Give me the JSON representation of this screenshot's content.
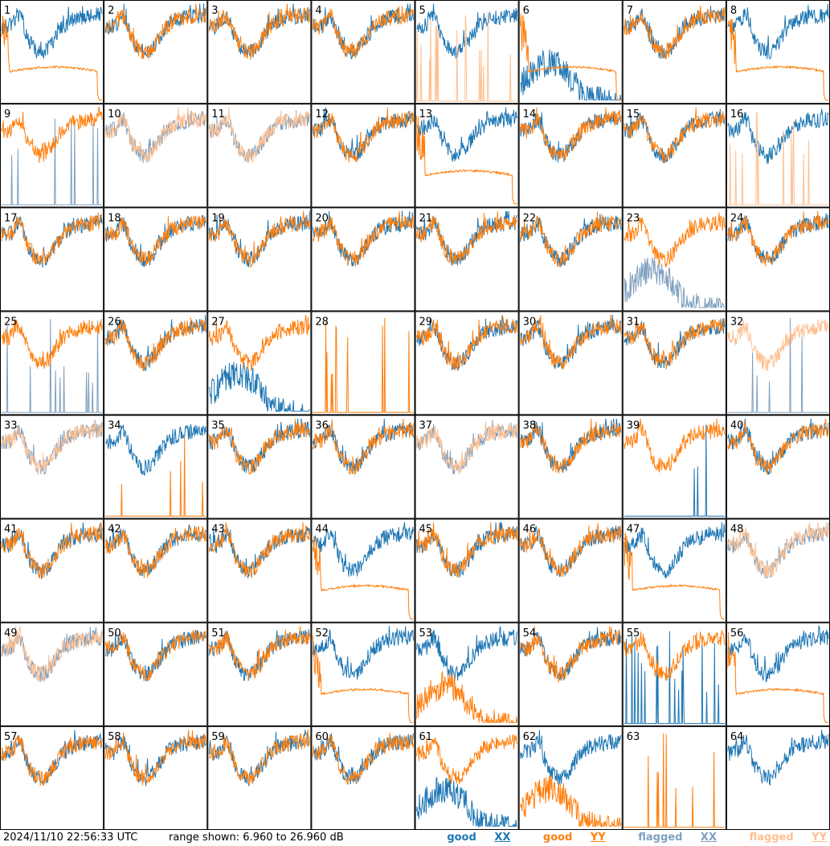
{
  "footer": {
    "timestamp": "2024/11/10 22:56:33 UTC",
    "range_label": "range shown:",
    "range_text": "6.960 to 26.960 dB"
  },
  "legend": {
    "good_xx": {
      "prefix": "good ",
      "pol": "XX",
      "color": "#1f77b4"
    },
    "good_yy": {
      "prefix": "good ",
      "pol": "YY",
      "color": "#ff7f0e"
    },
    "flagged_xx": {
      "prefix": "flagged ",
      "pol": "XX",
      "color": "#7f9fbf"
    },
    "flagged_yy": {
      "prefix": "flagged ",
      "pol": "YY",
      "color": "#ffbf8f"
    }
  },
  "chart_data": {
    "type": "line",
    "layout": "8x8 small multiples",
    "ylim": [
      6.96,
      26.96
    ],
    "grid": false,
    "legend_position": "bottom-right",
    "series_names": [
      "good XX",
      "good YY",
      "flagged XX",
      "flagged YY"
    ],
    "panel_labels": [
      "1",
      "2",
      "3",
      "4",
      "5",
      "6",
      "7",
      "8",
      "9",
      "10",
      "11",
      "12",
      "13",
      "14",
      "15",
      "16",
      "17",
      "18",
      "19",
      "20",
      "21",
      "22",
      "23",
      "24",
      "25",
      "26",
      "27",
      "28",
      "29",
      "30",
      "31",
      "32",
      "33",
      "34",
      "35",
      "36",
      "37",
      "38",
      "39",
      "40",
      "41",
      "42",
      "43",
      "44",
      "45",
      "46",
      "47",
      "48",
      "49",
      "50",
      "51",
      "52",
      "53",
      "54",
      "55",
      "56",
      "57",
      "58",
      "59",
      "60",
      "61",
      "62",
      "63",
      "64"
    ],
    "panels": [
      {
        "label": "1",
        "xx": "good",
        "yy": "good",
        "xx_kind": "normal",
        "yy_kind": "smooth"
      },
      {
        "label": "2",
        "xx": "good",
        "yy": "good",
        "xx_kind": "normal",
        "yy_kind": "normal"
      },
      {
        "label": "3",
        "xx": "good",
        "yy": "good",
        "xx_kind": "normal",
        "yy_kind": "normal"
      },
      {
        "label": "4",
        "xx": "good",
        "yy": "good",
        "xx_kind": "normal",
        "yy_kind": "normal"
      },
      {
        "label": "5",
        "xx": "good",
        "yy": "flagged",
        "xx_kind": "normal",
        "yy_kind": "spiky"
      },
      {
        "label": "6",
        "xx": "good",
        "yy": "good",
        "xx_kind": "deep",
        "yy_kind": "smooth"
      },
      {
        "label": "7",
        "xx": "good",
        "yy": "good",
        "xx_kind": "normal",
        "yy_kind": "normal"
      },
      {
        "label": "8",
        "xx": "good",
        "yy": "good",
        "xx_kind": "normal",
        "yy_kind": "smooth"
      },
      {
        "label": "9",
        "xx": "flagged",
        "yy": "good",
        "xx_kind": "spiky",
        "yy_kind": "normal"
      },
      {
        "label": "10",
        "xx": "flagged",
        "yy": "flagged",
        "xx_kind": "normal",
        "yy_kind": "normal"
      },
      {
        "label": "11",
        "xx": "flagged",
        "yy": "flagged",
        "xx_kind": "normal",
        "yy_kind": "normal"
      },
      {
        "label": "12",
        "xx": "good",
        "yy": "good",
        "xx_kind": "normal",
        "yy_kind": "normal"
      },
      {
        "label": "13",
        "xx": "good",
        "yy": "good",
        "xx_kind": "normal",
        "yy_kind": "smooth"
      },
      {
        "label": "14",
        "xx": "good",
        "yy": "good",
        "xx_kind": "normal",
        "yy_kind": "normal"
      },
      {
        "label": "15",
        "xx": "good",
        "yy": "good",
        "xx_kind": "normal",
        "yy_kind": "normal"
      },
      {
        "label": "16",
        "xx": "good",
        "yy": "flagged",
        "xx_kind": "normal",
        "yy_kind": "spiky"
      },
      {
        "label": "17",
        "xx": "good",
        "yy": "good",
        "xx_kind": "normal",
        "yy_kind": "normal"
      },
      {
        "label": "18",
        "xx": "good",
        "yy": "good",
        "xx_kind": "normal",
        "yy_kind": "normal"
      },
      {
        "label": "19",
        "xx": "good",
        "yy": "good",
        "xx_kind": "normal",
        "yy_kind": "normal"
      },
      {
        "label": "20",
        "xx": "good",
        "yy": "good",
        "xx_kind": "normal",
        "yy_kind": "normal"
      },
      {
        "label": "21",
        "xx": "good",
        "yy": "good",
        "xx_kind": "normal",
        "yy_kind": "normal"
      },
      {
        "label": "22",
        "xx": "good",
        "yy": "good",
        "xx_kind": "normal",
        "yy_kind": "normal"
      },
      {
        "label": "23",
        "xx": "flagged",
        "yy": "good",
        "xx_kind": "deep",
        "yy_kind": "normal"
      },
      {
        "label": "24",
        "xx": "good",
        "yy": "good",
        "xx_kind": "normal",
        "yy_kind": "normal"
      },
      {
        "label": "25",
        "xx": "flagged",
        "yy": "good",
        "xx_kind": "spiky",
        "yy_kind": "normal"
      },
      {
        "label": "26",
        "xx": "good",
        "yy": "good",
        "xx_kind": "normal",
        "yy_kind": "normal"
      },
      {
        "label": "27",
        "xx": "good",
        "yy": "good",
        "xx_kind": "deep",
        "yy_kind": "normal"
      },
      {
        "label": "28",
        "xx": "none",
        "yy": "good",
        "xx_kind": "none",
        "yy_kind": "spiky"
      },
      {
        "label": "29",
        "xx": "good",
        "yy": "good",
        "xx_kind": "normal",
        "yy_kind": "normal"
      },
      {
        "label": "30",
        "xx": "good",
        "yy": "good",
        "xx_kind": "normal",
        "yy_kind": "normal"
      },
      {
        "label": "31",
        "xx": "good",
        "yy": "good",
        "xx_kind": "normal",
        "yy_kind": "normal"
      },
      {
        "label": "32",
        "xx": "flagged",
        "yy": "flagged",
        "xx_kind": "spiky",
        "yy_kind": "normal"
      },
      {
        "label": "33",
        "xx": "flagged",
        "yy": "flagged",
        "xx_kind": "normal",
        "yy_kind": "normal"
      },
      {
        "label": "34",
        "xx": "good",
        "yy": "good",
        "xx_kind": "normal",
        "yy_kind": "spiky"
      },
      {
        "label": "35",
        "xx": "good",
        "yy": "good",
        "xx_kind": "normal",
        "yy_kind": "normal"
      },
      {
        "label": "36",
        "xx": "good",
        "yy": "good",
        "xx_kind": "normal",
        "yy_kind": "normal"
      },
      {
        "label": "37",
        "xx": "flagged",
        "yy": "flagged",
        "xx_kind": "normal",
        "yy_kind": "normal"
      },
      {
        "label": "38",
        "xx": "good",
        "yy": "good",
        "xx_kind": "normal",
        "yy_kind": "normal"
      },
      {
        "label": "39",
        "xx": "good",
        "yy": "good",
        "xx_kind": "spiky",
        "yy_kind": "normal"
      },
      {
        "label": "40",
        "xx": "good",
        "yy": "good",
        "xx_kind": "normal",
        "yy_kind": "normal"
      },
      {
        "label": "41",
        "xx": "good",
        "yy": "good",
        "xx_kind": "normal",
        "yy_kind": "normal"
      },
      {
        "label": "42",
        "xx": "good",
        "yy": "good",
        "xx_kind": "normal",
        "yy_kind": "normal"
      },
      {
        "label": "43",
        "xx": "good",
        "yy": "good",
        "xx_kind": "normal",
        "yy_kind": "normal"
      },
      {
        "label": "44",
        "xx": "good",
        "yy": "good",
        "xx_kind": "normal",
        "yy_kind": "smooth"
      },
      {
        "label": "45",
        "xx": "good",
        "yy": "good",
        "xx_kind": "normal",
        "yy_kind": "normal"
      },
      {
        "label": "46",
        "xx": "good",
        "yy": "good",
        "xx_kind": "normal",
        "yy_kind": "normal"
      },
      {
        "label": "47",
        "xx": "good",
        "yy": "good",
        "xx_kind": "normal",
        "yy_kind": "smooth"
      },
      {
        "label": "48",
        "xx": "flagged",
        "yy": "flagged",
        "xx_kind": "normal",
        "yy_kind": "normal"
      },
      {
        "label": "49",
        "xx": "flagged",
        "yy": "flagged",
        "xx_kind": "normal",
        "yy_kind": "normal"
      },
      {
        "label": "50",
        "xx": "good",
        "yy": "good",
        "xx_kind": "normal",
        "yy_kind": "normal"
      },
      {
        "label": "51",
        "xx": "good",
        "yy": "good",
        "xx_kind": "normal",
        "yy_kind": "normal"
      },
      {
        "label": "52",
        "xx": "good",
        "yy": "good",
        "xx_kind": "normal",
        "yy_kind": "smooth"
      },
      {
        "label": "53",
        "xx": "good",
        "yy": "good",
        "xx_kind": "normal",
        "yy_kind": "deep"
      },
      {
        "label": "54",
        "xx": "good",
        "yy": "good",
        "xx_kind": "normal",
        "yy_kind": "normal"
      },
      {
        "label": "55",
        "xx": "good",
        "yy": "good",
        "xx_kind": "spiky",
        "yy_kind": "normal"
      },
      {
        "label": "56",
        "xx": "good",
        "yy": "good",
        "xx_kind": "normal",
        "yy_kind": "smooth"
      },
      {
        "label": "57",
        "xx": "good",
        "yy": "good",
        "xx_kind": "normal",
        "yy_kind": "normal"
      },
      {
        "label": "58",
        "xx": "good",
        "yy": "good",
        "xx_kind": "normal",
        "yy_kind": "normal"
      },
      {
        "label": "59",
        "xx": "good",
        "yy": "good",
        "xx_kind": "normal",
        "yy_kind": "normal"
      },
      {
        "label": "60",
        "xx": "good",
        "yy": "good",
        "xx_kind": "normal",
        "yy_kind": "normal"
      },
      {
        "label": "61",
        "xx": "good",
        "yy": "good",
        "xx_kind": "deep",
        "yy_kind": "normal"
      },
      {
        "label": "62",
        "xx": "good",
        "yy": "good",
        "xx_kind": "normal",
        "yy_kind": "deep"
      },
      {
        "label": "63",
        "xx": "none",
        "yy": "good",
        "xx_kind": "none",
        "yy_kind": "spiky"
      },
      {
        "label": "64",
        "xx": "good",
        "yy": "none",
        "xx_kind": "normal",
        "yy_kind": "none"
      }
    ]
  }
}
